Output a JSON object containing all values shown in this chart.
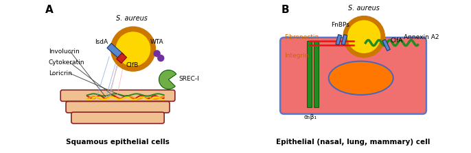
{
  "panel_A_label": "A",
  "panel_B_label": "B",
  "saureus_label": "S. aureus",
  "panel_A_sublabel": "Squamous epithelial cells",
  "panel_B_sublabel": "Epithelial (nasal, lung, mammary) cell",
  "left_labels": [
    "Involucrin",
    "Cytokeratin",
    "Loricrin"
  ],
  "alpha5beta1": "α₅β₁",
  "bacteria_outer_color": "#CC7700",
  "bacteria_inner_color": "#FFD700",
  "isda_color": "#5588CC",
  "clfa_color": "#5588CC",
  "fnbps_color": "#5588CC",
  "clfb_color_red": "#CC2222",
  "wta_color": "#7030A0",
  "srec_color": "#70AD47",
  "cell_fill_A": "#F0C090",
  "cell_outline_A": "#882222",
  "cell_fill_B": "#F07070",
  "cell_outline_B": "#5577CC",
  "nucleus_fill": "#FF7700",
  "nucleus_outline": "#4466BB",
  "integrin_color": "#228B22",
  "annexin_color": "#228B22",
  "fibronectin_color": "#EE1111",
  "wavy_red": "#DD1111",
  "wavy_orange": "#FF8C00",
  "wavy_yellow": "#FFD700",
  "wavy_green": "#228B22",
  "line_gray": "#444444",
  "line_blue": "#88AADD",
  "line_red_light": "#FFAAAA",
  "text_color": "#000000",
  "orange_text": "#CC6600"
}
